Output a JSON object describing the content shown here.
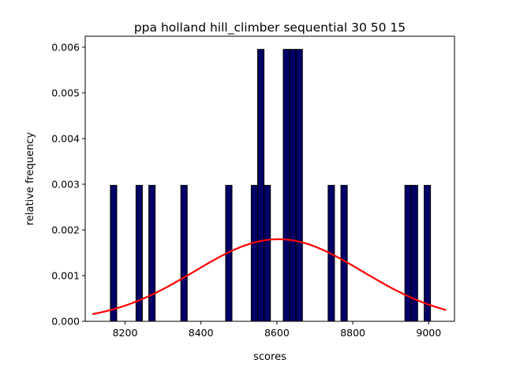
{
  "chart_data": {
    "type": "bar",
    "title": "ppa holland hill_climber sequential 30 50 15",
    "xlabel": "scores",
    "ylabel": "relative frequency",
    "xlim": [
      8095,
      9068
    ],
    "ylim": [
      0,
      0.00624
    ],
    "grid": false,
    "colors": {
      "bar_fill": "#000066",
      "bar_edge": "#000000",
      "curve": "#ff0000"
    },
    "x_ticks": [
      8200,
      8400,
      8600,
      8800,
      9000
    ],
    "x_tick_labels": [
      "8200",
      "8400",
      "8600",
      "8800",
      "9000"
    ],
    "y_ticks": [
      0.0,
      0.001,
      0.002,
      0.003,
      0.004,
      0.005,
      0.006
    ],
    "y_tick_labels": [
      "0.000",
      "0.001",
      "0.002",
      "0.003",
      "0.004",
      "0.005",
      "0.006"
    ],
    "histogram": {
      "bin_width": 16.8,
      "bins": [
        {
          "start": 8161.3,
          "value": 0.002976
        },
        {
          "start": 8228.8,
          "value": 0.002976
        },
        {
          "start": 8262.5,
          "value": 0.002976
        },
        {
          "start": 8346.9,
          "value": 0.002976
        },
        {
          "start": 8464.9,
          "value": 0.002976
        },
        {
          "start": 8532.4,
          "value": 0.002976
        },
        {
          "start": 8549.3,
          "value": 0.005952
        },
        {
          "start": 8566.2,
          "value": 0.002976
        },
        {
          "start": 8616.8,
          "value": 0.005952
        },
        {
          "start": 8633.6,
          "value": 0.005952
        },
        {
          "start": 8650.5,
          "value": 0.005952
        },
        {
          "start": 8735.0,
          "value": 0.002976
        },
        {
          "start": 8768.7,
          "value": 0.002976
        },
        {
          "start": 8937.3,
          "value": 0.002976
        },
        {
          "start": 8954.2,
          "value": 0.002976
        },
        {
          "start": 8988.0,
          "value": 0.002976
        }
      ]
    },
    "normal_fit": {
      "mean": 8604,
      "std": 222,
      "x_range": [
        8114,
        9046
      ]
    }
  }
}
